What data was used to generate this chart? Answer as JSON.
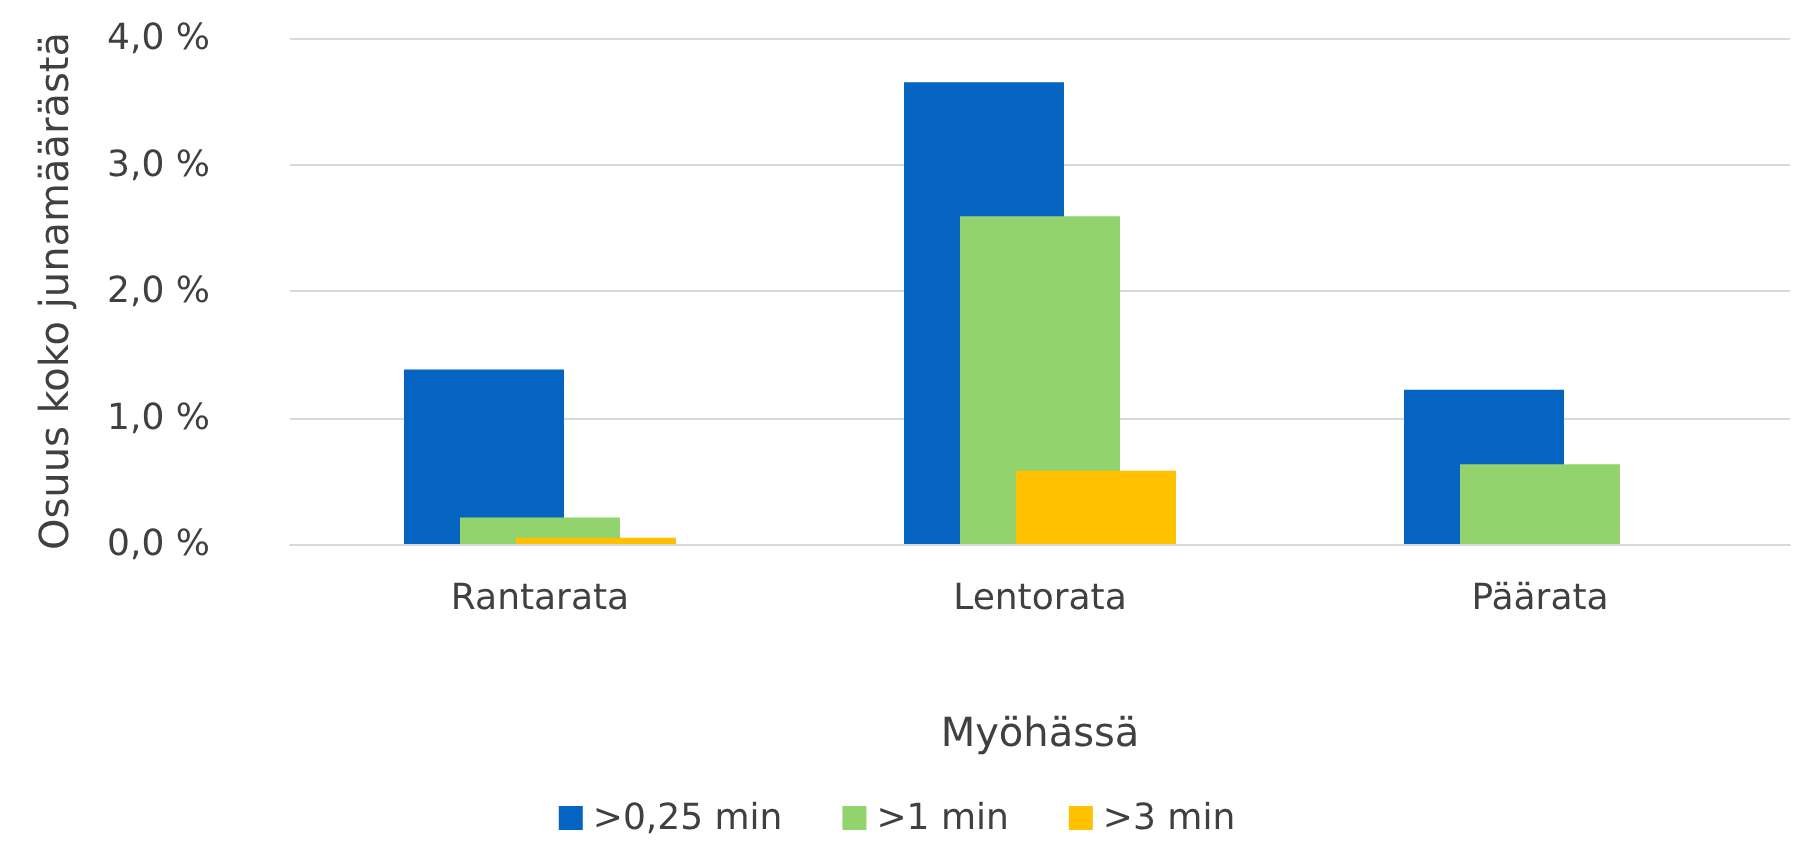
{
  "chart_data": {
    "type": "bar",
    "xlabel": "Myöhässä",
    "ylabel": "Osuus koko junamäärästä",
    "categories": [
      "Rantarata",
      "Lentorata",
      "Päärata"
    ],
    "series": [
      {
        "name": ">0,25 min",
        "color": "#0563c1",
        "values": [
          1.38,
          3.65,
          1.22
        ]
      },
      {
        "name": ">1 min",
        "color": "#92d36e",
        "values": [
          0.21,
          2.59,
          0.63
        ]
      },
      {
        "name": ">3 min",
        "color": "#ffc000",
        "values": [
          0.05,
          0.58,
          0
        ]
      }
    ],
    "ylim": [
      0,
      4
    ],
    "yticks": [
      {
        "value": 0,
        "label": "0,0 %"
      },
      {
        "value": 1,
        "label": "1,0 %"
      },
      {
        "value": 2,
        "label": "2,0 %"
      },
      {
        "value": 3,
        "label": "3,0 %"
      },
      {
        "value": 4,
        "label": "4,0 %"
      }
    ],
    "grid": "y",
    "legend": "bottom"
  }
}
